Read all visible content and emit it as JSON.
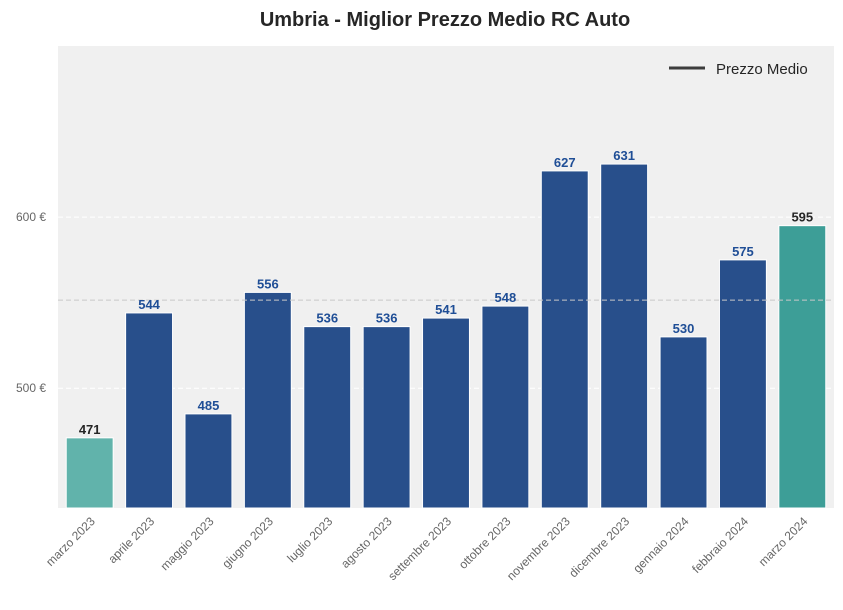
{
  "chart_data": {
    "type": "bar",
    "title": "Umbria - Miglior Prezzo Medio RC Auto",
    "categories": [
      "marzo 2023",
      "aprile 2023",
      "maggio 2023",
      "giugno 2023",
      "luglio 2023",
      "agosto 2023",
      "settembre 2023",
      "ottobre 2023",
      "novembre 2023",
      "dicembre 2023",
      "gennaio 2024",
      "febbraio 2024",
      "marzo 2024"
    ],
    "values": [
      471,
      544,
      485,
      556,
      536,
      536,
      541,
      548,
      627,
      631,
      530,
      575,
      595
    ],
    "series_name": "Prezzo Medio",
    "mean_line": 551.5,
    "ylim": [
      430,
      700
    ],
    "yticks": [
      500,
      600
    ],
    "ytick_labels": [
      "500 €",
      "600 €"
    ],
    "legend_position": "top-right",
    "grid": true,
    "colors": {
      "default_bar": "#284f8b",
      "first_bar": "#61b3ab",
      "last_bar": "#3d9e97",
      "default_label": "#1f4e96",
      "highlight_label": "#262626",
      "plot_bg": "#f0f0f0",
      "mean_line": "#c8c8c8",
      "legend_line": "#3d3d3d"
    }
  }
}
